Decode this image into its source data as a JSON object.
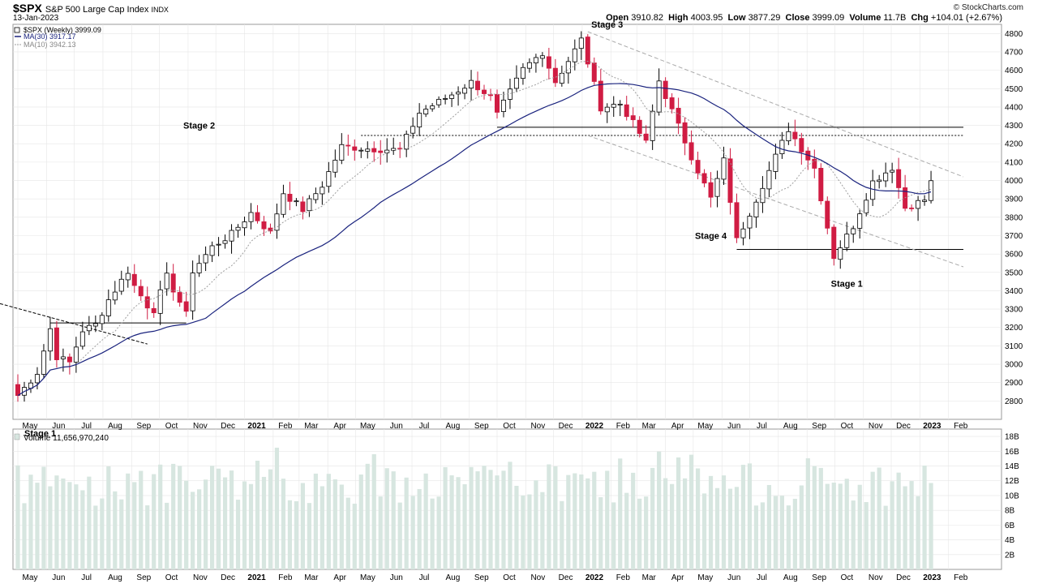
{
  "header": {
    "symbol": "$SPX",
    "name": "S&P 500 Large Cap Index",
    "exchange": "INDX",
    "date": "13-Jan-2023",
    "brand": "© StockCharts.com",
    "ohlc": {
      "open_label": "Open",
      "open": "3910.82",
      "high_label": "High",
      "high": "4003.95",
      "low_label": "Low",
      "low": "3877.29",
      "close_label": "Close",
      "close": "3999.09",
      "volume_label": "Volume",
      "volume": "11.7B",
      "chg_label": "Chg",
      "chg": "+104.01 (+2.67%)"
    }
  },
  "legend": {
    "price": "$SPX (Weekly) 3999.09",
    "ma30": "MA(30) 3917.17",
    "ma10": "MA(10) 3942.13",
    "volume": "Volume 11,656,970,240"
  },
  "colors": {
    "up_candle": "#ffffff",
    "down_candle": "#d01c43",
    "ma30": "#1a237e",
    "ma10": "#9e9e9e",
    "volume_bar": "#d7e6e0",
    "grid": "#e6e6e6"
  },
  "chart_data": {
    "type": "candlestick",
    "period": "weekly",
    "y_axis": {
      "min": 2700,
      "max": 4850,
      "ticks": [
        2800,
        2900,
        3000,
        3100,
        3200,
        3300,
        3400,
        3500,
        3600,
        3700,
        3800,
        3900,
        4000,
        4100,
        4200,
        4300,
        4400,
        4500,
        4600,
        4700,
        4800
      ]
    },
    "x_axis_labels": [
      "May",
      "Jun",
      "Jul",
      "Aug",
      "Sep",
      "Oct",
      "Nov",
      "Dec",
      "2021",
      "Feb",
      "Mar",
      "Apr",
      "May",
      "Jun",
      "Jul",
      "Aug",
      "Sep",
      "Oct",
      "Nov",
      "Dec",
      "2022",
      "Feb",
      "Mar",
      "Apr",
      "May",
      "Jun",
      "Jul",
      "Aug",
      "Sep",
      "Oct",
      "Nov",
      "Dec",
      "2023",
      "Feb"
    ],
    "close_anchors": [
      {
        "date": "2020-05-01",
        "close": 2830
      },
      {
        "date": "2020-05-22",
        "close": 2955
      },
      {
        "date": "2020-06-05",
        "close": 3193
      },
      {
        "date": "2020-06-12",
        "close": 3041
      },
      {
        "date": "2020-06-26",
        "close": 3009
      },
      {
        "date": "2020-07-10",
        "close": 3185
      },
      {
        "date": "2020-07-24",
        "close": 3215
      },
      {
        "date": "2020-08-07",
        "close": 3351
      },
      {
        "date": "2020-08-28",
        "close": 3508
      },
      {
        "date": "2020-09-04",
        "close": 3426
      },
      {
        "date": "2020-09-18",
        "close": 3319
      },
      {
        "date": "2020-09-25",
        "close": 3298
      },
      {
        "date": "2020-10-09",
        "close": 3477
      },
      {
        "date": "2020-10-30",
        "close": 3270
      },
      {
        "date": "2020-11-06",
        "close": 3509
      },
      {
        "date": "2020-11-27",
        "close": 3638
      },
      {
        "date": "2020-12-18",
        "close": 3709
      },
      {
        "date": "2021-01-08",
        "close": 3824
      },
      {
        "date": "2021-01-29",
        "close": 3714
      },
      {
        "date": "2021-02-12",
        "close": 3934
      },
      {
        "date": "2021-03-05",
        "close": 3841
      },
      {
        "date": "2021-03-26",
        "close": 3974
      },
      {
        "date": "2021-04-16",
        "close": 4185
      },
      {
        "date": "2021-05-14",
        "close": 4173
      },
      {
        "date": "2021-06-18",
        "close": 4166
      },
      {
        "date": "2021-07-09",
        "close": 4369
      },
      {
        "date": "2021-08-13",
        "close": 4468
      },
      {
        "date": "2021-09-03",
        "close": 4535
      },
      {
        "date": "2021-09-24",
        "close": 4455
      },
      {
        "date": "2021-10-01",
        "close": 4357
      },
      {
        "date": "2021-10-29",
        "close": 4605
      },
      {
        "date": "2021-11-19",
        "close": 4698
      },
      {
        "date": "2021-12-03",
        "close": 4538
      },
      {
        "date": "2021-12-31",
        "close": 4766
      },
      {
        "date": "2022-01-21",
        "close": 4398
      },
      {
        "date": "2022-02-11",
        "close": 4418
      },
      {
        "date": "2022-03-11",
        "close": 4204
      },
      {
        "date": "2022-03-25",
        "close": 4543
      },
      {
        "date": "2022-04-29",
        "close": 4131
      },
      {
        "date": "2022-05-20",
        "close": 3901
      },
      {
        "date": "2022-06-03",
        "close": 4108
      },
      {
        "date": "2022-06-17",
        "close": 3675
      },
      {
        "date": "2022-07-08",
        "close": 3899
      },
      {
        "date": "2022-07-29",
        "close": 4130
      },
      {
        "date": "2022-08-12",
        "close": 4280
      },
      {
        "date": "2022-09-09",
        "close": 4067
      },
      {
        "date": "2022-09-30",
        "close": 3586
      },
      {
        "date": "2022-10-21",
        "close": 3752
      },
      {
        "date": "2022-11-11",
        "close": 3993
      },
      {
        "date": "2022-12-02",
        "close": 4071
      },
      {
        "date": "2022-12-16",
        "close": 3852
      },
      {
        "date": "2023-01-06",
        "close": 3895
      },
      {
        "date": "2023-01-13",
        "close": 3999
      }
    ],
    "volume": {
      "unit": "B",
      "ticks": [
        2,
        4,
        6,
        8,
        10,
        12,
        14,
        16,
        18
      ],
      "min": 0,
      "max": 19,
      "last": 11.7
    },
    "annotations": [
      {
        "label": "Stage 1",
        "date": "2020-05-08"
      },
      {
        "label": "Stage 2",
        "date": "2020-11-13",
        "price": 4300
      },
      {
        "label": "Stage 3",
        "date": "2022-01-28",
        "price": 4850
      },
      {
        "label": "Stage 4",
        "date": "2022-05-20",
        "price": 3700
      },
      {
        "label": "Stage 1",
        "date": "2022-10-14",
        "price": 3440
      }
    ],
    "levels": [
      4290,
      4245,
      3625,
      3225
    ]
  }
}
